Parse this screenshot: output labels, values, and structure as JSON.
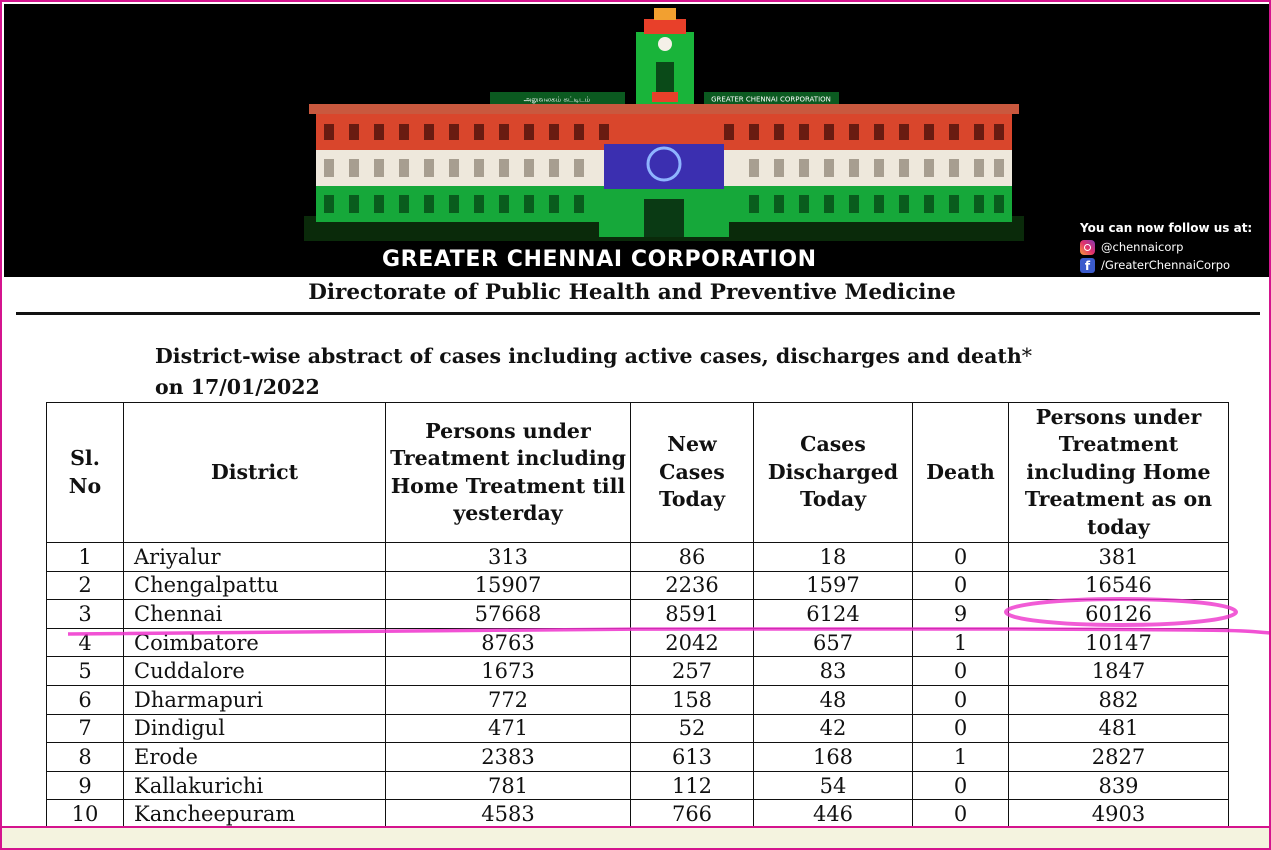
{
  "banner": {
    "organization": "GREATER CHENNAI CORPORATION",
    "follow_heading": "You can now follow us at:",
    "instagram_handle": "@chennaicorp",
    "facebook_handle": "/GreaterChennaiCorpo",
    "building_sign_left": "அலுவலகம் கட்டிடம்",
    "building_sign_right": "GREATER CHENNAI CORPORATION"
  },
  "header": {
    "directorate": "Directorate of Public Health and Preventive Medicine",
    "subtitle_line1": "District-wise abstract of cases including active cases, discharges and death",
    "subtitle_star": "*",
    "subtitle_line2": "on 17/01/2022"
  },
  "table": {
    "headers": [
      "Sl. No",
      "District",
      "Persons under Treatment including Home Treatment till yesterday",
      "New Cases Today",
      "Cases Discharged Today",
      "Death",
      "Persons under Treatment including Home Treatment as on today"
    ],
    "rows": [
      [
        "1",
        "Ariyalur",
        "313",
        "86",
        "18",
        "0",
        "381"
      ],
      [
        "2",
        "Chengalpattu",
        "15907",
        "2236",
        "1597",
        "0",
        "16546"
      ],
      [
        "3",
        "Chennai",
        "57668",
        "8591",
        "6124",
        "9",
        "60126"
      ],
      [
        "4",
        "Coimbatore",
        "8763",
        "2042",
        "657",
        "1",
        "10147"
      ],
      [
        "5",
        "Cuddalore",
        "1673",
        "257",
        "83",
        "0",
        "1847"
      ],
      [
        "6",
        "Dharmapuri",
        "772",
        "158",
        "48",
        "0",
        "882"
      ],
      [
        "7",
        "Dindigul",
        "471",
        "52",
        "42",
        "0",
        "481"
      ],
      [
        "8",
        "Erode",
        "2383",
        "613",
        "168",
        "1",
        "2827"
      ],
      [
        "9",
        "Kallakurichi",
        "781",
        "112",
        "54",
        "0",
        "839"
      ],
      [
        "10",
        "Kancheepuram",
        "4583",
        "766",
        "446",
        "0",
        "4903"
      ]
    ]
  },
  "colors": {
    "frame_border": "#d4148e",
    "highlight": "#ee33cc",
    "banner_bg": "#000000",
    "lights_red": "#e8402a",
    "lights_white": "#f4f0e8",
    "lights_green": "#19b43a"
  }
}
